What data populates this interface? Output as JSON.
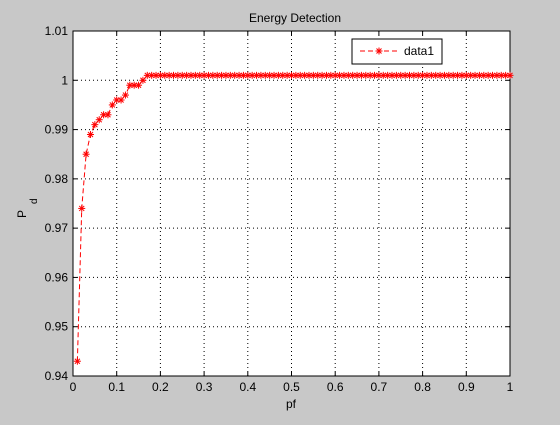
{
  "chart_data": {
    "type": "line",
    "title": "Energy Detection",
    "xlabel": "pf",
    "ylabel_main": "P",
    "ylabel_sub": "d",
    "xlim": [
      0,
      1
    ],
    "ylim": [
      0.94,
      1.01
    ],
    "xticks": [
      "0",
      "0.1",
      "0.2",
      "0.3",
      "0.4",
      "0.5",
      "0.6",
      "0.7",
      "0.8",
      "0.9",
      "1"
    ],
    "yticks": [
      "0.94",
      "0.95",
      "0.96",
      "0.97",
      "0.98",
      "0.99",
      "1",
      "1.01"
    ],
    "grid": true,
    "legend_position": "top-right",
    "series": [
      {
        "name": "data1",
        "color": "#ff0000",
        "line_style": "dashed",
        "marker": "asterisk",
        "x": [
          0.01,
          0.02,
          0.03,
          0.04,
          0.05,
          0.06,
          0.07,
          0.08,
          0.09,
          0.1,
          0.11,
          0.12,
          0.13,
          0.14,
          0.15,
          0.16,
          0.17,
          0.18,
          0.19,
          0.2,
          0.21,
          0.22,
          0.23,
          0.24,
          0.25,
          0.26,
          0.27,
          0.28,
          0.29,
          0.3,
          0.31,
          0.32,
          0.33,
          0.34,
          0.35,
          0.36,
          0.37,
          0.38,
          0.39,
          0.4,
          0.41,
          0.42,
          0.43,
          0.44,
          0.45,
          0.46,
          0.47,
          0.48,
          0.49,
          0.5,
          0.51,
          0.52,
          0.53,
          0.54,
          0.55,
          0.56,
          0.57,
          0.58,
          0.59,
          0.6,
          0.61,
          0.62,
          0.63,
          0.64,
          0.65,
          0.66,
          0.67,
          0.68,
          0.69,
          0.7,
          0.71,
          0.72,
          0.73,
          0.74,
          0.75,
          0.76,
          0.77,
          0.78,
          0.79,
          0.8,
          0.81,
          0.82,
          0.83,
          0.84,
          0.85,
          0.86,
          0.87,
          0.88,
          0.89,
          0.9,
          0.91,
          0.92,
          0.93,
          0.94,
          0.95,
          0.96,
          0.97,
          0.98,
          0.99,
          1.0
        ],
        "y": [
          0.943,
          0.974,
          0.985,
          0.989,
          0.991,
          0.992,
          0.993,
          0.993,
          0.995,
          0.996,
          0.996,
          0.997,
          0.999,
          0.999,
          0.999,
          1.0,
          1.001,
          1.001,
          1.001,
          1.001,
          1.001,
          1.001,
          1.001,
          1.001,
          1.001,
          1.001,
          1.001,
          1.001,
          1.001,
          1.001,
          1.001,
          1.001,
          1.001,
          1.001,
          1.001,
          1.001,
          1.001,
          1.001,
          1.001,
          1.001,
          1.001,
          1.001,
          1.001,
          1.001,
          1.001,
          1.001,
          1.001,
          1.001,
          1.001,
          1.001,
          1.001,
          1.001,
          1.001,
          1.001,
          1.001,
          1.001,
          1.001,
          1.001,
          1.001,
          1.001,
          1.001,
          1.001,
          1.001,
          1.001,
          1.001,
          1.001,
          1.001,
          1.001,
          1.001,
          1.001,
          1.001,
          1.001,
          1.001,
          1.001,
          1.001,
          1.001,
          1.001,
          1.001,
          1.001,
          1.001,
          1.001,
          1.001,
          1.001,
          1.001,
          1.001,
          1.001,
          1.001,
          1.001,
          1.001,
          1.001,
          1.001,
          1.001,
          1.001,
          1.001,
          1.001,
          1.001,
          1.001,
          1.001,
          1.001,
          1.001
        ]
      }
    ]
  }
}
